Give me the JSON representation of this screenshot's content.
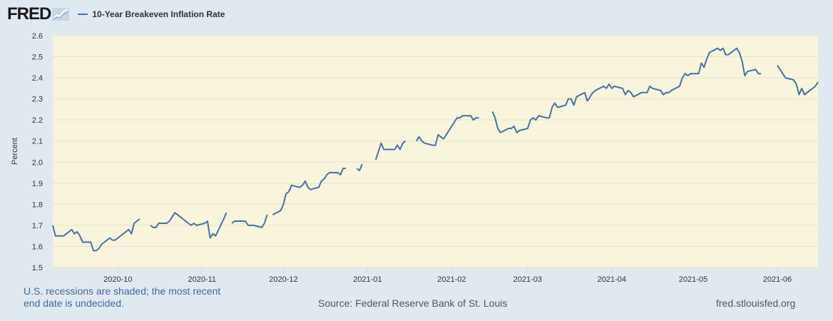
{
  "header": {
    "logo_text": "FRED",
    "legend_label": "10-Year Breakeven Inflation Rate"
  },
  "footer": {
    "note": "U.S. recessions are shaded; the most recent end date is undecided.",
    "source": "Source: Federal Reserve Bank of St. Louis",
    "url": "fred.stlouisfed.org"
  },
  "colors": {
    "plot_background": "#f8f5dc",
    "page_background": "#e1e9f0",
    "series": "#4572a7",
    "gridline": "#e6e3cc"
  },
  "chart_data": {
    "type": "line",
    "title": "",
    "xlabel": "",
    "ylabel": "Percent",
    "ylim": [
      1.5,
      2.6
    ],
    "yticks": [
      1.5,
      1.6,
      1.7,
      1.8,
      1.9,
      2.0,
      2.1,
      2.2,
      2.3,
      2.4,
      2.5,
      2.6
    ],
    "ytick_labels": [
      "1.5",
      "1.6",
      "1.7",
      "1.8",
      "1.9",
      "2.0",
      "2.1",
      "2.2",
      "2.3",
      "2.4",
      "2.5",
      "2.6"
    ],
    "xlim": [
      "2020-09-07",
      "2021-06-16"
    ],
    "xticks": [
      "2020-10-01",
      "2020-11-01",
      "2020-12-01",
      "2021-01-01",
      "2021-02-01",
      "2021-03-01",
      "2021-04-01",
      "2021-05-01",
      "2021-06-01"
    ],
    "xtick_labels": [
      "2020-10",
      "2020-11",
      "2020-12",
      "2021-01",
      "2021-02",
      "2021-03",
      "2021-04",
      "2021-05",
      "2021-06"
    ],
    "grid": true,
    "legend_position": "top-left",
    "series": [
      {
        "name": "10-Year Breakeven Inflation Rate",
        "segments": [
          {
            "x": [
              "2020-09-07",
              "2020-09-08",
              "2020-09-09",
              "2020-09-10",
              "2020-09-11",
              "2020-09-14",
              "2020-09-15",
              "2020-09-16",
              "2020-09-17",
              "2020-09-18",
              "2020-09-21",
              "2020-09-22",
              "2020-09-23",
              "2020-09-24",
              "2020-09-25",
              "2020-09-28",
              "2020-09-29",
              "2020-09-30",
              "2020-10-01",
              "2020-10-02",
              "2020-10-05",
              "2020-10-06",
              "2020-10-07",
              "2020-10-08",
              "2020-10-09"
            ],
            "y": [
              1.7,
              1.65,
              1.65,
              1.65,
              1.65,
              1.68,
              1.66,
              1.67,
              1.65,
              1.62,
              1.62,
              1.58,
              1.58,
              1.59,
              1.61,
              1.64,
              1.63,
              1.63,
              1.64,
              1.65,
              1.68,
              1.66,
              1.71,
              1.72,
              1.73
            ]
          },
          {
            "x": [
              "2020-10-13",
              "2020-10-14",
              "2020-10-15",
              "2020-10-16",
              "2020-10-19",
              "2020-10-20",
              "2020-10-21",
              "2020-10-22",
              "2020-10-23",
              "2020-10-26",
              "2020-10-27",
              "2020-10-28",
              "2020-10-29",
              "2020-10-30",
              "2020-11-02",
              "2020-11-03",
              "2020-11-04",
              "2020-11-05",
              "2020-11-06",
              "2020-11-09",
              "2020-11-10"
            ],
            "y": [
              1.7,
              1.69,
              1.69,
              1.71,
              1.71,
              1.72,
              1.74,
              1.76,
              1.75,
              1.72,
              1.71,
              1.7,
              1.71,
              1.7,
              1.71,
              1.72,
              1.64,
              1.66,
              1.65,
              1.73,
              1.76
            ]
          },
          {
            "x": [
              "2020-11-12",
              "2020-11-13",
              "2020-11-16",
              "2020-11-17",
              "2020-11-18",
              "2020-11-19",
              "2020-11-20",
              "2020-11-23",
              "2020-11-24",
              "2020-11-25"
            ],
            "y": [
              1.71,
              1.72,
              1.72,
              1.72,
              1.7,
              1.7,
              1.7,
              1.69,
              1.71,
              1.75
            ]
          },
          {
            "x": [
              "2020-11-27",
              "2020-11-30",
              "2020-12-01",
              "2020-12-02",
              "2020-12-03",
              "2020-12-04",
              "2020-12-07",
              "2020-12-08",
              "2020-12-09",
              "2020-12-10",
              "2020-12-11",
              "2020-12-14",
              "2020-12-15",
              "2020-12-16",
              "2020-12-17",
              "2020-12-18",
              "2020-12-21",
              "2020-12-22",
              "2020-12-23",
              "2020-12-24"
            ],
            "y": [
              1.75,
              1.77,
              1.8,
              1.85,
              1.86,
              1.89,
              1.88,
              1.89,
              1.91,
              1.88,
              1.87,
              1.88,
              1.91,
              1.92,
              1.94,
              1.95,
              1.95,
              1.94,
              1.97,
              1.97
            ]
          },
          {
            "x": [
              "2020-12-28",
              "2020-12-29",
              "2020-12-30"
            ],
            "y": [
              1.97,
              1.96,
              1.99
            ]
          },
          {
            "x": [
              "2021-01-04",
              "2021-01-05",
              "2021-01-06",
              "2021-01-07",
              "2021-01-08",
              "2021-01-11",
              "2021-01-12",
              "2021-01-13",
              "2021-01-14",
              "2021-01-15"
            ],
            "y": [
              2.01,
              2.05,
              2.09,
              2.06,
              2.06,
              2.06,
              2.08,
              2.06,
              2.09,
              2.1
            ]
          },
          {
            "x": [
              "2021-01-19",
              "2021-01-20",
              "2021-01-21",
              "2021-01-22",
              "2021-01-25",
              "2021-01-26",
              "2021-01-27",
              "2021-01-28",
              "2021-01-29",
              "2021-02-01",
              "2021-02-02",
              "2021-02-03",
              "2021-02-04",
              "2021-02-05",
              "2021-02-08",
              "2021-02-09",
              "2021-02-10",
              "2021-02-11"
            ],
            "y": [
              2.1,
              2.12,
              2.1,
              2.09,
              2.08,
              2.08,
              2.13,
              2.12,
              2.11,
              2.17,
              2.19,
              2.21,
              2.21,
              2.22,
              2.22,
              2.2,
              2.21,
              2.21
            ]
          },
          {
            "x": [
              "2021-02-16",
              "2021-02-17",
              "2021-02-18",
              "2021-02-19",
              "2021-02-22",
              "2021-02-23",
              "2021-02-24",
              "2021-02-25",
              "2021-02-26",
              "2021-03-01",
              "2021-03-02",
              "2021-03-03",
              "2021-03-04",
              "2021-03-05",
              "2021-03-08",
              "2021-03-09",
              "2021-03-10",
              "2021-03-11",
              "2021-03-12",
              "2021-03-15",
              "2021-03-16",
              "2021-03-17",
              "2021-03-18",
              "2021-03-19",
              "2021-03-22",
              "2021-03-23",
              "2021-03-24",
              "2021-03-25",
              "2021-03-26",
              "2021-03-29",
              "2021-03-30",
              "2021-03-31",
              "2021-04-01",
              "2021-04-02",
              "2021-04-05",
              "2021-04-06",
              "2021-04-07",
              "2021-04-08",
              "2021-04-09",
              "2021-04-12",
              "2021-04-13",
              "2021-04-14",
              "2021-04-15",
              "2021-04-16",
              "2021-04-19",
              "2021-04-20",
              "2021-04-21",
              "2021-04-22",
              "2021-04-23",
              "2021-04-26",
              "2021-04-27",
              "2021-04-28",
              "2021-04-29",
              "2021-04-30",
              "2021-05-03",
              "2021-05-04",
              "2021-05-05",
              "2021-05-06",
              "2021-05-07",
              "2021-05-10",
              "2021-05-11",
              "2021-05-12",
              "2021-05-13",
              "2021-05-14",
              "2021-05-17",
              "2021-05-18",
              "2021-05-19",
              "2021-05-20",
              "2021-05-21",
              "2021-05-24",
              "2021-05-25",
              "2021-05-26"
            ],
            "y": [
              2.24,
              2.21,
              2.16,
              2.14,
              2.16,
              2.16,
              2.17,
              2.14,
              2.15,
              2.16,
              2.2,
              2.21,
              2.2,
              2.22,
              2.21,
              2.21,
              2.26,
              2.28,
              2.26,
              2.27,
              2.3,
              2.3,
              2.27,
              2.31,
              2.33,
              2.29,
              2.31,
              2.33,
              2.34,
              2.36,
              2.35,
              2.37,
              2.35,
              2.36,
              2.35,
              2.32,
              2.34,
              2.33,
              2.31,
              2.33,
              2.33,
              2.33,
              2.36,
              2.35,
              2.34,
              2.32,
              2.33,
              2.33,
              2.34,
              2.36,
              2.4,
              2.42,
              2.41,
              2.42,
              2.42,
              2.47,
              2.45,
              2.49,
              2.52,
              2.54,
              2.53,
              2.54,
              2.51,
              2.51,
              2.54,
              2.52,
              2.48,
              2.41,
              2.43,
              2.44,
              2.42,
              2.42
            ]
          },
          {
            "x": [
              "2021-06-01",
              "2021-06-02",
              "2021-06-03",
              "2021-06-04",
              "2021-06-07",
              "2021-06-08",
              "2021-06-09",
              "2021-06-10",
              "2021-06-11",
              "2021-06-14",
              "2021-06-15",
              "2021-06-16"
            ],
            "y": [
              2.46,
              2.44,
              2.42,
              2.4,
              2.39,
              2.37,
              2.32,
              2.35,
              2.32,
              2.35,
              2.36,
              2.38
            ]
          }
        ]
      }
    ]
  }
}
